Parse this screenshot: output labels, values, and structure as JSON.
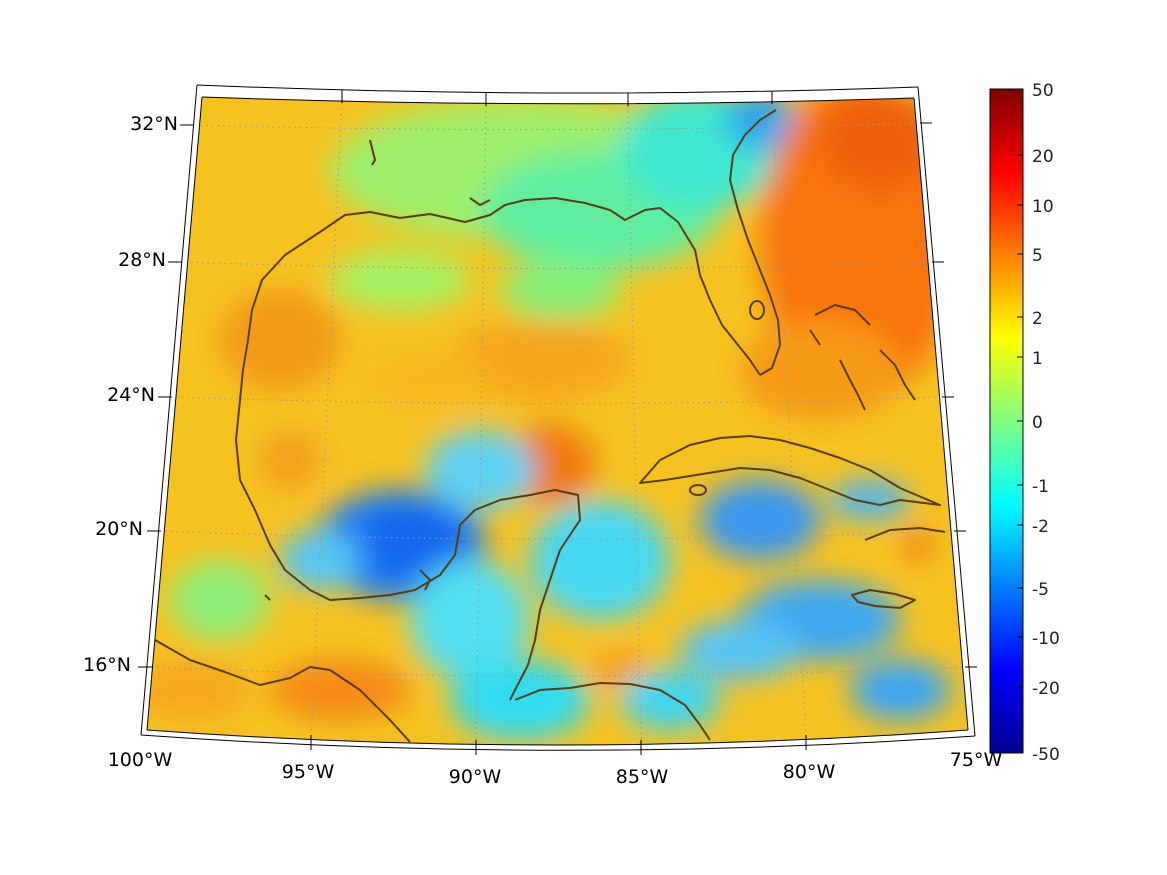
{
  "map": {
    "projection": "conic",
    "graticule": "dotted",
    "latitude_labels": [
      "32°N",
      "28°N",
      "24°N",
      "20°N",
      "16°N"
    ],
    "longitude_labels": [
      "100°W",
      "95°W",
      "90°W",
      "85°W",
      "80°W",
      "75°W"
    ],
    "features": [
      "Gulf of Mexico",
      "Florida",
      "Cuba",
      "Yucatan Peninsula",
      "Jamaica",
      "Bahamas"
    ],
    "coastline_color": "#5a3d14"
  },
  "colorbar": {
    "colormap": "jet",
    "tick_labels": [
      "50",
      "20",
      "10",
      "5",
      "2",
      "1",
      "0",
      "-1",
      "-2",
      "-5",
      "-10",
      "-20",
      "-50"
    ]
  }
}
